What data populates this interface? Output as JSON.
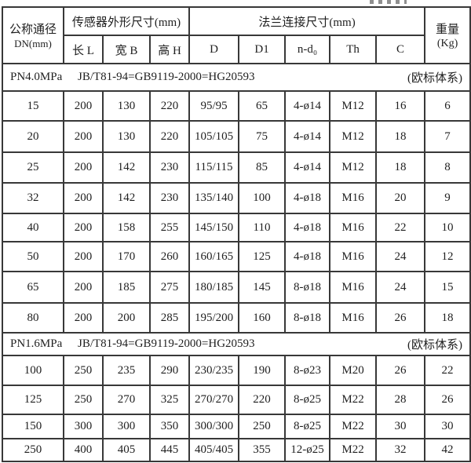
{
  "colors": {
    "border": "#383838",
    "text": "#1f1f1f",
    "background": "#ffffff"
  },
  "table": {
    "header": {
      "dn_line1": "公称通径",
      "dn_line2": "DN(mm)",
      "sensor_group": "传感器外形尺寸(mm)",
      "sensor_cols": [
        "长 L",
        "宽 B",
        "高 H"
      ],
      "flange_group": "法兰连接尺寸(mm)",
      "flange_cols": [
        "D",
        "D1",
        "n-d₀",
        "Th",
        "C"
      ],
      "weight_line1": "重量",
      "weight_line2": "(Kg)"
    },
    "sections": [
      {
        "pressure": "PN4.0MPa",
        "standard": "JB/T81-94=GB9119-2000=HG20593",
        "note": "(欧标体系)",
        "rows": [
          [
            "15",
            "200",
            "130",
            "220",
            "95/95",
            "65",
            "4-ø14",
            "M12",
            "16",
            "6"
          ],
          [
            "20",
            "200",
            "130",
            "220",
            "105/105",
            "75",
            "4-ø14",
            "M12",
            "18",
            "7"
          ],
          [
            "25",
            "200",
            "142",
            "230",
            "115/115",
            "85",
            "4-ø14",
            "M12",
            "18",
            "8"
          ],
          [
            "32",
            "200",
            "142",
            "230",
            "135/140",
            "100",
            "4-ø18",
            "M16",
            "20",
            "9"
          ],
          [
            "40",
            "200",
            "158",
            "255",
            "145/150",
            "110",
            "4-ø18",
            "M16",
            "22",
            "10"
          ],
          [
            "50",
            "200",
            "170",
            "260",
            "160/165",
            "125",
            "4-ø18",
            "M16",
            "24",
            "12"
          ],
          [
            "65",
            "200",
            "185",
            "275",
            "180/185",
            "145",
            "8-ø18",
            "M16",
            "24",
            "15"
          ],
          [
            "80",
            "200",
            "200",
            "285",
            "195/200",
            "160",
            "8-ø18",
            "M16",
            "26",
            "18"
          ]
        ]
      },
      {
        "pressure": "PN1.6MPa",
        "standard": "JB/T81-94=GB9119-2000=HG20593",
        "note": "(欧标体系)",
        "rows": [
          [
            "100",
            "250",
            "235",
            "290",
            "230/235",
            "190",
            "8-ø23",
            "M20",
            "26",
            "22"
          ],
          [
            "125",
            "250",
            "270",
            "325",
            "270/270",
            "220",
            "8-ø25",
            "M22",
            "28",
            "26"
          ],
          [
            "150",
            "300",
            "300",
            "350",
            "300/300",
            "250",
            "8-ø25",
            "M22",
            "30",
            "30"
          ],
          [
            "250",
            "400",
            "405",
            "445",
            "405/405",
            "355",
            "12-ø25",
            "M22",
            "32",
            "42"
          ]
        ]
      }
    ]
  }
}
